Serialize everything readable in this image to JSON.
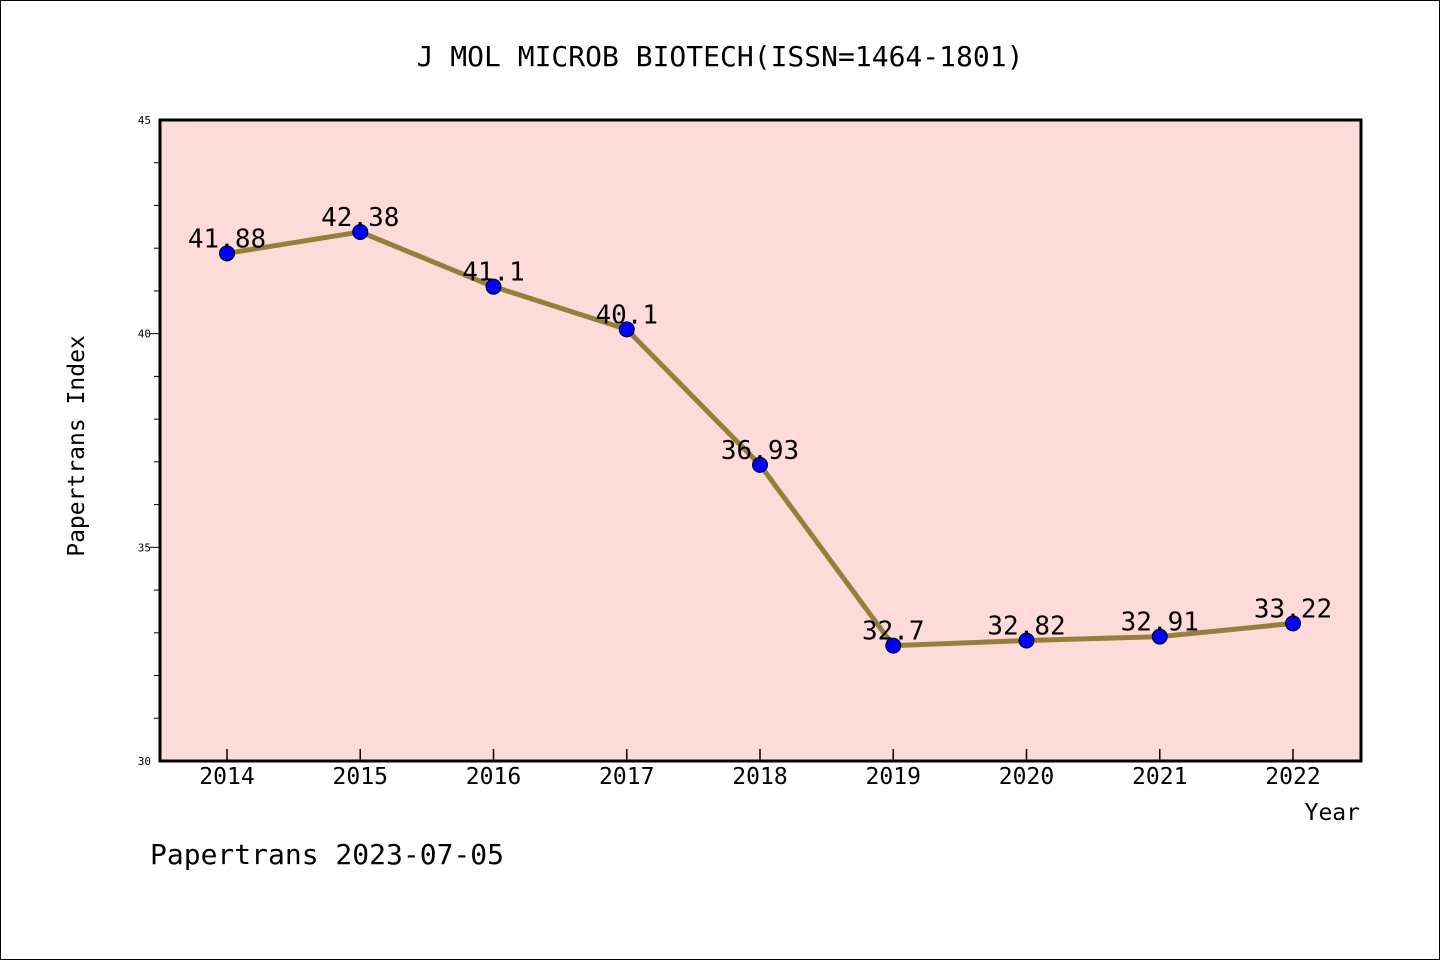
{
  "chart_data": {
    "type": "line",
    "title": "J MOL MICROB BIOTECH(ISSN=1464-1801)",
    "xlabel": "Year",
    "ylabel": "Papertrans Index",
    "categories": [
      "2014",
      "2015",
      "2016",
      "2017",
      "2018",
      "2019",
      "2020",
      "2021",
      "2022"
    ],
    "values": [
      41.88,
      42.38,
      41.1,
      40.1,
      36.93,
      32.7,
      32.82,
      32.91,
      33.22
    ],
    "data_labels": [
      "41.88",
      "42.38",
      "41.1",
      "40.1",
      "36.93",
      "32.7",
      "32.82",
      "32.91",
      "33.22"
    ],
    "ylim": [
      30,
      45
    ],
    "yticks": [
      "30",
      "35",
      "40",
      "45"
    ],
    "grid": false,
    "colors": {
      "plot_background": "#fddbd8",
      "line": "#94803c",
      "marker": "#0000ff"
    }
  },
  "footer": "Papertrans 2023-07-05"
}
